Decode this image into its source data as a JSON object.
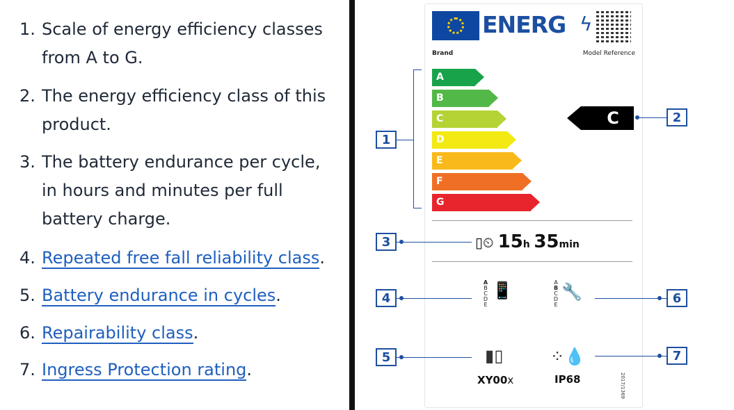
{
  "list": [
    {
      "num": "1.",
      "lines": [
        "Scale of energy efficiency classes",
        "from A to G."
      ],
      "link": false
    },
    {
      "num": "2.",
      "lines": [
        "The energy efficiency class of this",
        "product."
      ],
      "link": false
    },
    {
      "num": "3.",
      "lines": [
        "The battery endurance per cycle,",
        "in hours and minutes per full",
        "battery charge."
      ],
      "link": false
    },
    {
      "num": "4.",
      "text": "Repeated free fall reliability class",
      "suffix": ".",
      "link": true
    },
    {
      "num": "5.",
      "text": "Battery endurance in cycles",
      "suffix": ".",
      "link": true
    },
    {
      "num": "6.",
      "text": "Repairability class",
      "suffix": ".",
      "link": true
    },
    {
      "num": "7.",
      "text": "Ingress Protection rating",
      "suffix": ".",
      "link": true
    }
  ],
  "label": {
    "energy_word": "ENERG",
    "brand": "Brand",
    "model": "Model Reference",
    "classes": [
      {
        "letter": "A",
        "color": "#18a34a"
      },
      {
        "letter": "B",
        "color": "#52b848"
      },
      {
        "letter": "C",
        "color": "#b5d334"
      },
      {
        "letter": "D",
        "color": "#f7ef22"
      },
      {
        "letter": "E",
        "color": "#f9b91b"
      },
      {
        "letter": "F",
        "color": "#ef6f25"
      },
      {
        "letter": "G",
        "color": "#e8242c"
      }
    ],
    "product_class": "C",
    "endurance_hours": "15",
    "hours_unit": "h",
    "endurance_minutes": "35",
    "minutes_unit": "min",
    "scale_letters": [
      "A",
      "B",
      "C",
      "D",
      "E"
    ],
    "cycles_value": "XY00",
    "cycles_suffix": "x",
    "ip_rating": "IP68",
    "regulation": "2017/1369"
  },
  "callouts": [
    "1",
    "2",
    "3",
    "4",
    "5",
    "6",
    "7"
  ]
}
